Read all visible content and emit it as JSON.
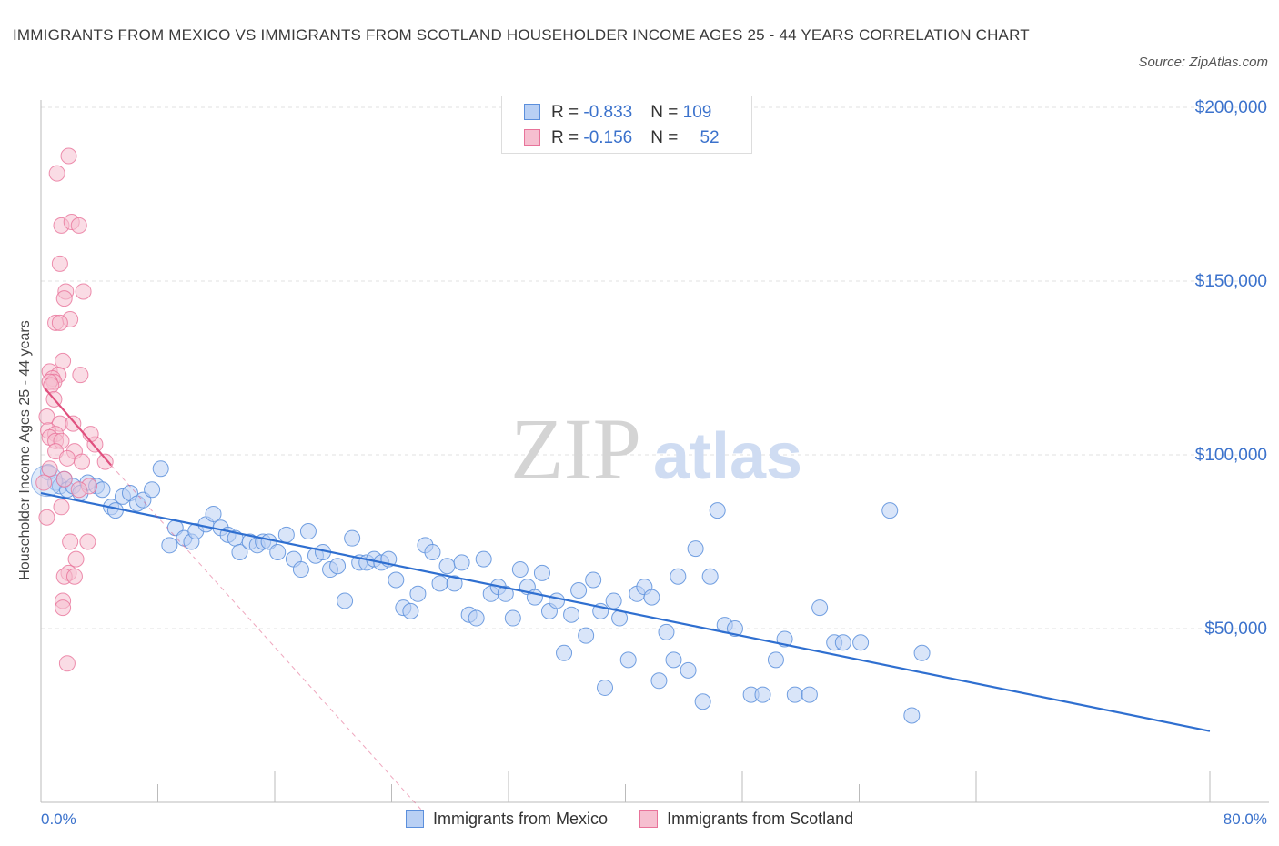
{
  "title": "IMMIGRANTS FROM MEXICO VS IMMIGRANTS FROM SCOTLAND HOUSEHOLDER INCOME AGES 25 - 44 YEARS CORRELATION CHART",
  "source": "Source: ZipAtlas.com",
  "watermark": {
    "zip": "ZIP",
    "atlas": "atlas"
  },
  "legend": {
    "mexico": {
      "r_label": "R = ",
      "r_value": "-0.833",
      "n_label": "N = ",
      "n_value": "109"
    },
    "scotland": {
      "r_label": "R = ",
      "r_value": "-0.156",
      "n_label": "N = ",
      "n_value": "52"
    }
  },
  "colors": {
    "mexico": "#5b8fdc",
    "mexico_fill": "#b9d0f4",
    "scotland": "#e8739a",
    "scotland_fill": "#f6bfd0",
    "mexico_line": "#2f6fd0",
    "scotland_line": "#e0507e",
    "axis_text": "#3b72cc",
    "grid": "#e2e2e2"
  },
  "chart_data": {
    "type": "scatter",
    "xlabel": "",
    "ylabel": "Householder Income Ages 25 - 44 years",
    "xlim": [
      0,
      80
    ],
    "ylim": [
      0,
      210000
    ],
    "x_tick_labels": [
      "0.0%",
      "80.0%"
    ],
    "y_ticks": [
      50000,
      100000,
      150000,
      200000
    ],
    "y_tick_labels": [
      "$50,000",
      "$100,000",
      "$150,000",
      "$200,000"
    ],
    "grid": true,
    "legend_position": "top-center",
    "series": [
      {
        "name": "Immigrants from Mexico",
        "trend": {
          "x": [
            0,
            80
          ],
          "y": [
            89000,
            20500
          ]
        },
        "points": [
          [
            0.5,
            95000
          ],
          [
            1.0,
            92000
          ],
          [
            1.3,
            91000
          ],
          [
            1.6,
            93000
          ],
          [
            1.8,
            90000
          ],
          [
            2.2,
            91000
          ],
          [
            2.7,
            89000
          ],
          [
            3.2,
            92000
          ],
          [
            3.8,
            91000
          ],
          [
            4.2,
            90000
          ],
          [
            4.8,
            85000
          ],
          [
            5.1,
            84000
          ],
          [
            5.6,
            88000
          ],
          [
            6.1,
            89000
          ],
          [
            6.6,
            86000
          ],
          [
            7.0,
            87000
          ],
          [
            7.6,
            90000
          ],
          [
            8.2,
            96000
          ],
          [
            8.8,
            74000
          ],
          [
            9.2,
            79000
          ],
          [
            9.8,
            76000
          ],
          [
            10.3,
            75000
          ],
          [
            10.6,
            78000
          ],
          [
            11.3,
            80000
          ],
          [
            11.8,
            83000
          ],
          [
            12.3,
            79000
          ],
          [
            12.8,
            77000
          ],
          [
            13.3,
            76000
          ],
          [
            13.6,
            72000
          ],
          [
            14.3,
            75000
          ],
          [
            14.8,
            74000
          ],
          [
            15.2,
            75000
          ],
          [
            15.6,
            75000
          ],
          [
            16.2,
            72000
          ],
          [
            16.8,
            77000
          ],
          [
            17.3,
            70000
          ],
          [
            17.8,
            67000
          ],
          [
            18.3,
            78000
          ],
          [
            18.8,
            71000
          ],
          [
            19.3,
            72000
          ],
          [
            19.8,
            67000
          ],
          [
            20.3,
            68000
          ],
          [
            20.8,
            58000
          ],
          [
            21.3,
            76000
          ],
          [
            21.8,
            69000
          ],
          [
            22.3,
            69000
          ],
          [
            22.8,
            70000
          ],
          [
            23.3,
            69000
          ],
          [
            23.8,
            70000
          ],
          [
            24.3,
            64000
          ],
          [
            24.8,
            56000
          ],
          [
            25.3,
            55000
          ],
          [
            25.8,
            60000
          ],
          [
            26.3,
            74000
          ],
          [
            26.8,
            72000
          ],
          [
            27.3,
            63000
          ],
          [
            27.8,
            68000
          ],
          [
            28.3,
            63000
          ],
          [
            28.8,
            69000
          ],
          [
            29.3,
            54000
          ],
          [
            29.8,
            53000
          ],
          [
            30.3,
            70000
          ],
          [
            30.8,
            60000
          ],
          [
            31.3,
            62000
          ],
          [
            31.8,
            60000
          ],
          [
            32.3,
            53000
          ],
          [
            32.8,
            67000
          ],
          [
            33.3,
            62000
          ],
          [
            33.8,
            59000
          ],
          [
            34.3,
            66000
          ],
          [
            34.8,
            55000
          ],
          [
            35.3,
            58000
          ],
          [
            35.8,
            43000
          ],
          [
            36.3,
            54000
          ],
          [
            36.8,
            61000
          ],
          [
            37.3,
            48000
          ],
          [
            37.8,
            64000
          ],
          [
            38.3,
            55000
          ],
          [
            38.6,
            33000
          ],
          [
            39.2,
            58000
          ],
          [
            39.6,
            53000
          ],
          [
            40.2,
            41000
          ],
          [
            40.8,
            60000
          ],
          [
            41.3,
            62000
          ],
          [
            41.8,
            59000
          ],
          [
            42.3,
            35000
          ],
          [
            42.8,
            49000
          ],
          [
            43.3,
            41000
          ],
          [
            43.6,
            65000
          ],
          [
            44.3,
            38000
          ],
          [
            44.8,
            73000
          ],
          [
            45.3,
            29000
          ],
          [
            45.8,
            65000
          ],
          [
            46.3,
            84000
          ],
          [
            46.8,
            51000
          ],
          [
            47.5,
            50000
          ],
          [
            48.6,
            31000
          ],
          [
            49.4,
            31000
          ],
          [
            50.3,
            41000
          ],
          [
            50.9,
            47000
          ],
          [
            51.6,
            31000
          ],
          [
            52.6,
            31000
          ],
          [
            53.3,
            56000
          ],
          [
            54.3,
            46000
          ],
          [
            54.9,
            46000
          ],
          [
            56.1,
            46000
          ],
          [
            58.1,
            84000
          ],
          [
            59.6,
            25000
          ],
          [
            60.3,
            43000
          ]
        ]
      },
      {
        "name": "Immigrants from Scotland",
        "trend": {
          "x": [
            0.3,
            4.8
          ],
          "y": [
            119000,
            97000
          ]
        },
        "trend_extension": {
          "x": [
            4.8,
            26.0
          ],
          "y": [
            97000,
            -2000
          ]
        },
        "points": [
          [
            1.1,
            181000
          ],
          [
            1.9,
            186000
          ],
          [
            1.4,
            166000
          ],
          [
            2.1,
            167000
          ],
          [
            2.6,
            166000
          ],
          [
            1.3,
            155000
          ],
          [
            2.9,
            147000
          ],
          [
            1.7,
            147000
          ],
          [
            1.6,
            145000
          ],
          [
            2.0,
            139000
          ],
          [
            1.0,
            138000
          ],
          [
            1.3,
            138000
          ],
          [
            1.5,
            127000
          ],
          [
            0.6,
            124000
          ],
          [
            1.2,
            123000
          ],
          [
            0.8,
            122000
          ],
          [
            0.9,
            121000
          ],
          [
            0.6,
            121000
          ],
          [
            0.7,
            120000
          ],
          [
            2.7,
            123000
          ],
          [
            0.9,
            116000
          ],
          [
            0.4,
            111000
          ],
          [
            1.3,
            109000
          ],
          [
            0.5,
            107000
          ],
          [
            1.0,
            106000
          ],
          [
            2.2,
            109000
          ],
          [
            0.6,
            105000
          ],
          [
            1.0,
            104000
          ],
          [
            1.4,
            104000
          ],
          [
            3.7,
            103000
          ],
          [
            2.3,
            101000
          ],
          [
            1.0,
            101000
          ],
          [
            1.8,
            99000
          ],
          [
            2.8,
            98000
          ],
          [
            4.4,
            98000
          ],
          [
            0.6,
            96000
          ],
          [
            1.6,
            93000
          ],
          [
            3.3,
            91000
          ],
          [
            2.6,
            90000
          ],
          [
            1.4,
            85000
          ],
          [
            0.4,
            82000
          ],
          [
            2.0,
            75000
          ],
          [
            3.2,
            75000
          ],
          [
            2.4,
            70000
          ],
          [
            1.9,
            66000
          ],
          [
            1.6,
            65000
          ],
          [
            2.3,
            65000
          ],
          [
            1.5,
            58000
          ],
          [
            1.5,
            56000
          ],
          [
            1.8,
            40000
          ],
          [
            0.2,
            92000
          ],
          [
            3.4,
            106000
          ]
        ]
      }
    ]
  },
  "bottom_legend": [
    "Immigrants from Mexico",
    "Immigrants from Scotland"
  ]
}
